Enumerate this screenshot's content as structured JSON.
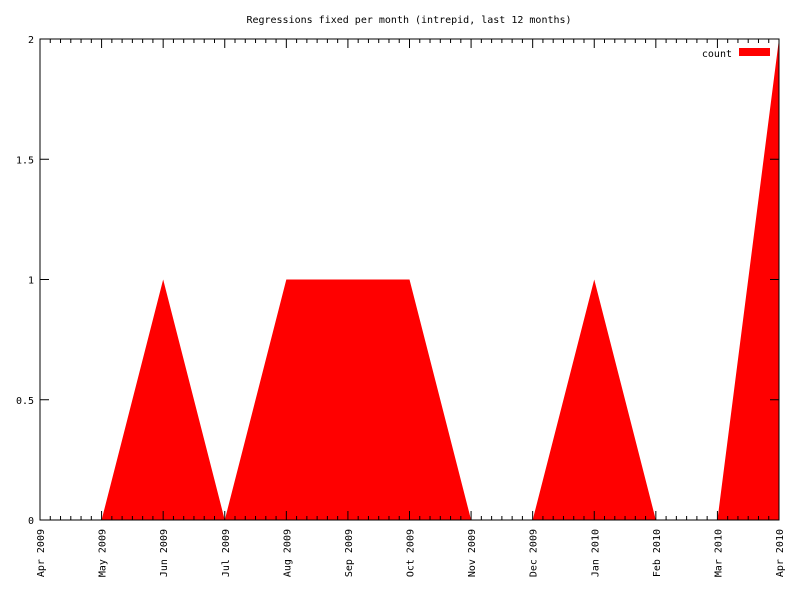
{
  "chart_data": {
    "type": "area",
    "title": "Regressions fixed per month (intrepid, last 12 months)",
    "xlabel": "",
    "ylabel": "",
    "x": [
      "Apr 2009",
      "May 2009",
      "Jun 2009",
      "Jul 2009",
      "Aug 2009",
      "Sep 2009",
      "Oct 2009",
      "Nov 2009",
      "Dec 2009",
      "Jan 2010",
      "Feb 2010",
      "Mar 2010",
      "Apr 2010"
    ],
    "series": [
      {
        "name": "count",
        "values": [
          0,
          0,
          1,
          0,
          1,
          1,
          1,
          0,
          0,
          1,
          0,
          0,
          2
        ],
        "color": "#ff0000"
      }
    ],
    "ylim": [
      0,
      2
    ],
    "yticks": [
      "0",
      "0.5",
      "1",
      "1.5",
      "2"
    ],
    "legend": "top-right",
    "grid": false
  }
}
